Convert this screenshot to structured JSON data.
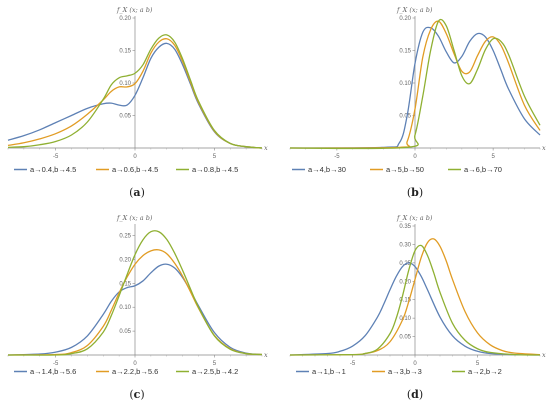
{
  "colors": [
    "#5E81B5",
    "#E19C24",
    "#8FB032"
  ],
  "chart_data": [
    {
      "type": "line",
      "panel_label_prefix": "(",
      "panel_label": "a",
      "panel_label_suffix": ")",
      "ylabel": "f_X (x; a  b)",
      "xlabel": "x",
      "xlim": [
        -8,
        8
      ],
      "ylim": [
        0,
        0.2
      ],
      "xticks": [
        -5,
        0,
        5
      ],
      "yticks": [
        0.05,
        0.1,
        0.15,
        0.2
      ],
      "xtick_labels": [
        "-5",
        "0",
        "5"
      ],
      "ytick_labels": [
        "0.05",
        "0.10",
        "0.15",
        "0.20"
      ],
      "legend_position": "bottom",
      "series": [
        {
          "name": "a→0.4,b→4.5",
          "x": [
            -8,
            -7,
            -6,
            -5,
            -4,
            -3,
            -2,
            -1.5,
            -1,
            -0.5,
            0,
            0.5,
            1,
            1.5,
            2,
            2.5,
            3,
            3.5,
            4,
            5,
            6,
            7,
            8
          ],
          "y": [
            0.012,
            0.019,
            0.028,
            0.039,
            0.05,
            0.061,
            0.068,
            0.069,
            0.066,
            0.066,
            0.081,
            0.108,
            0.138,
            0.155,
            0.161,
            0.152,
            0.128,
            0.098,
            0.068,
            0.025,
            0.007,
            0.002,
            0.0
          ]
        },
        {
          "name": "a→0.6,b→4.5",
          "x": [
            -8,
            -7,
            -6,
            -5,
            -4,
            -3,
            -2,
            -1.5,
            -1,
            -0.5,
            0,
            0.5,
            1,
            1.5,
            2,
            2.5,
            3,
            3.5,
            4,
            5,
            6,
            7,
            8
          ],
          "y": [
            0.004,
            0.008,
            0.014,
            0.022,
            0.034,
            0.052,
            0.074,
            0.087,
            0.094,
            0.094,
            0.099,
            0.118,
            0.146,
            0.163,
            0.168,
            0.158,
            0.133,
            0.101,
            0.07,
            0.026,
            0.007,
            0.002,
            0.0
          ]
        },
        {
          "name": "a→0.8,b→4.5",
          "x": [
            -8,
            -7,
            -6,
            -5,
            -4,
            -3,
            -2,
            -1.5,
            -1,
            -0.5,
            0,
            0.5,
            1,
            1.5,
            2,
            2.5,
            3,
            3.5,
            4,
            5,
            6,
            7,
            8
          ],
          "y": [
            0.001,
            0.002,
            0.005,
            0.01,
            0.02,
            0.04,
            0.075,
            0.097,
            0.108,
            0.111,
            0.115,
            0.128,
            0.152,
            0.169,
            0.174,
            0.163,
            0.137,
            0.104,
            0.072,
            0.027,
            0.007,
            0.002,
            0.0
          ]
        }
      ]
    },
    {
      "type": "line",
      "panel_label_prefix": "(",
      "panel_label": "b",
      "panel_label_suffix": ")",
      "ylabel": "f_X (x; a  b)",
      "xlabel": "x",
      "xlim": [
        -8,
        8
      ],
      "ylim": [
        0,
        0.2
      ],
      "xticks": [
        -5,
        0,
        5
      ],
      "yticks": [
        0.05,
        0.1,
        0.15,
        0.2
      ],
      "xtick_labels": [
        "-5",
        "0",
        "5"
      ],
      "ytick_labels": [
        "0.05",
        "0.10",
        "0.15",
        "0.20"
      ],
      "legend_position": "bottom",
      "series": [
        {
          "name": "a→4,b→30",
          "x": [
            -8,
            -2,
            -1,
            -0.5,
            0,
            0.5,
            1,
            1.5,
            2,
            2.5,
            3,
            3.5,
            4,
            4.5,
            5,
            5.5,
            6,
            7,
            8
          ],
          "y": [
            0.0,
            0.001,
            0.008,
            0.05,
            0.13,
            0.178,
            0.185,
            0.172,
            0.148,
            0.131,
            0.141,
            0.164,
            0.176,
            0.171,
            0.15,
            0.12,
            0.09,
            0.045,
            0.02
          ]
        },
        {
          "name": "a→5,b→50",
          "x": [
            -8,
            -1,
            -0.5,
            0,
            0.5,
            1,
            1.5,
            2,
            2.5,
            3,
            3.5,
            4,
            4.5,
            5,
            5.5,
            6,
            7,
            8
          ],
          "y": [
            0.0,
            0.001,
            0.01,
            0.06,
            0.14,
            0.182,
            0.195,
            0.176,
            0.145,
            0.118,
            0.117,
            0.142,
            0.164,
            0.171,
            0.158,
            0.13,
            0.066,
            0.027
          ]
        },
        {
          "name": "a→6,b→70",
          "x": [
            -8,
            -0.5,
            0,
            0.5,
            1,
            1.5,
            2,
            2.5,
            3,
            3.5,
            4,
            4.5,
            5,
            5.5,
            6,
            7,
            8
          ],
          "y": [
            0.0,
            0.001,
            0.02,
            0.08,
            0.15,
            0.195,
            0.188,
            0.15,
            0.111,
            0.099,
            0.121,
            0.151,
            0.168,
            0.164,
            0.143,
            0.08,
            0.035
          ]
        }
      ]
    },
    {
      "type": "line",
      "panel_label_prefix": "(",
      "panel_label": "c",
      "panel_label_suffix": ")",
      "ylabel": "f_X (x; a  b)",
      "xlabel": "x",
      "xlim": [
        -8,
        8
      ],
      "ylim": [
        0,
        0.27
      ],
      "xticks": [
        -5,
        0,
        5
      ],
      "yticks": [
        0.05,
        0.1,
        0.15,
        0.2,
        0.25
      ],
      "xtick_labels": [
        "-5",
        "0",
        "5"
      ],
      "ytick_labels": [
        "0.05",
        "0.10",
        "0.15",
        "0.20",
        "0.25"
      ],
      "legend_position": "bottom",
      "series": [
        {
          "name": "a→1.4,b→5.6",
          "x": [
            -8,
            -6,
            -5,
            -4,
            -3,
            -2,
            -1.5,
            -1,
            -0.5,
            0,
            0.5,
            1,
            1.5,
            2,
            2.5,
            3,
            3.5,
            4,
            5,
            6,
            7,
            8
          ],
          "y": [
            0.0,
            0.002,
            0.006,
            0.016,
            0.04,
            0.085,
            0.112,
            0.132,
            0.141,
            0.145,
            0.155,
            0.172,
            0.186,
            0.19,
            0.182,
            0.162,
            0.134,
            0.103,
            0.047,
            0.016,
            0.004,
            0.001
          ]
        },
        {
          "name": "a→2.2,b→5.6",
          "x": [
            -8,
            -5,
            -4,
            -3,
            -2,
            -1.5,
            -1,
            -0.5,
            0,
            0.5,
            1,
            1.5,
            2,
            2.5,
            3,
            3.5,
            4,
            5,
            6,
            7,
            8
          ],
          "y": [
            0.0,
            0.001,
            0.005,
            0.02,
            0.06,
            0.093,
            0.13,
            0.163,
            0.19,
            0.208,
            0.218,
            0.22,
            0.212,
            0.192,
            0.165,
            0.132,
            0.098,
            0.041,
            0.013,
            0.003,
            0.001
          ]
        },
        {
          "name": "a→2.5,b→4.2",
          "x": [
            -8,
            -5,
            -4,
            -3,
            -2,
            -1.5,
            -1,
            -0.5,
            0,
            0.5,
            1,
            1.5,
            2,
            2.5,
            3,
            3.5,
            4,
            5,
            6,
            7,
            8
          ],
          "y": [
            0.0,
            0.0,
            0.003,
            0.013,
            0.048,
            0.082,
            0.124,
            0.168,
            0.21,
            0.241,
            0.258,
            0.258,
            0.242,
            0.213,
            0.177,
            0.138,
            0.1,
            0.04,
            0.012,
            0.003,
            0.001
          ]
        }
      ]
    },
    {
      "type": "line",
      "panel_label_prefix": "(",
      "panel_label": "d",
      "panel_label_suffix": ")",
      "ylabel": "f_X (x; a  b)",
      "xlabel": "x",
      "xlim": [
        -10,
        10
      ],
      "ylim": [
        0,
        0.35
      ],
      "xticks": [
        -5,
        0,
        5
      ],
      "yticks": [
        0.05,
        0.1,
        0.15,
        0.2,
        0.25,
        0.3,
        0.35
      ],
      "xtick_labels": [
        "-5",
        "0",
        "5"
      ],
      "ytick_labels": [
        "0.05",
        "0.10",
        "0.15",
        "0.20",
        "0.25",
        "0.30",
        "0.35"
      ],
      "legend_position": "bottom",
      "series": [
        {
          "name": "a→1,b→1",
          "x": [
            -10,
            -7,
            -6,
            -5,
            -4,
            -3,
            -2.5,
            -2,
            -1.5,
            -1,
            -0.5,
            0,
            0.5,
            1,
            2,
            3,
            4,
            5,
            6,
            8,
            10
          ],
          "y": [
            0.0,
            0.004,
            0.01,
            0.024,
            0.052,
            0.103,
            0.138,
            0.177,
            0.213,
            0.24,
            0.25,
            0.24,
            0.213,
            0.177,
            0.103,
            0.052,
            0.024,
            0.01,
            0.004,
            0.001,
            0.0
          ]
        },
        {
          "name": "a→3,b→3",
          "x": [
            -10,
            -5,
            -4,
            -3,
            -2,
            -1,
            -0.5,
            0,
            0.5,
            1,
            1.5,
            2,
            2.5,
            3,
            4,
            5,
            6,
            7,
            8,
            10
          ],
          "y": [
            0.0,
            0.001,
            0.004,
            0.012,
            0.036,
            0.095,
            0.145,
            0.205,
            0.265,
            0.305,
            0.315,
            0.295,
            0.255,
            0.205,
            0.118,
            0.06,
            0.028,
            0.012,
            0.005,
            0.001
          ]
        },
        {
          "name": "a→2,b→2",
          "x": [
            -10,
            -5,
            -4,
            -3,
            -2,
            -1.5,
            -1,
            -0.5,
            0,
            0.5,
            1,
            1.5,
            2,
            3,
            4,
            5,
            6,
            8,
            10
          ],
          "y": [
            0.0,
            0.001,
            0.004,
            0.016,
            0.058,
            0.1,
            0.16,
            0.23,
            0.283,
            0.297,
            0.27,
            0.223,
            0.17,
            0.086,
            0.04,
            0.017,
            0.007,
            0.001,
            0.0
          ]
        }
      ]
    }
  ]
}
